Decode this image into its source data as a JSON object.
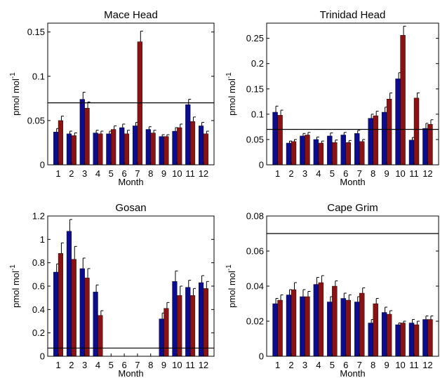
{
  "colors": {
    "series_a": "#0c0d8e",
    "series_b": "#8b1212",
    "axis": "#000000"
  },
  "chart_data": [
    {
      "type": "bar",
      "title": "Mace Head",
      "xlabel": "Month",
      "ylabel": "pmol mol",
      "ylabel_sup": "-1",
      "categories": [
        "1",
        "2",
        "3",
        "4",
        "5",
        "6",
        "7",
        "8",
        "9",
        "10",
        "11",
        "12"
      ],
      "ylim": [
        0,
        0.16
      ],
      "yticks": [
        0,
        0.05,
        0.1,
        0.15
      ],
      "ytick_labels": [
        "0",
        "0.05",
        "0.1",
        "0.15"
      ],
      "reference_line": 0.07,
      "grid": false,
      "series": [
        {
          "values": [
            0.037,
            0.035,
            0.074,
            0.036,
            0.035,
            0.042,
            0.044,
            0.04,
            0.032,
            0.038,
            0.068,
            0.044
          ],
          "errors": [
            0.004,
            0.003,
            0.008,
            0.003,
            0.003,
            0.004,
            0.004,
            0.003,
            0.002,
            0.004,
            0.006,
            0.004
          ]
        },
        {
          "values": [
            0.05,
            0.033,
            0.064,
            0.035,
            0.04,
            0.035,
            0.139,
            0.036,
            0.032,
            0.042,
            0.049,
            0.035
          ],
          "errors": [
            0.005,
            0.003,
            0.007,
            0.003,
            0.004,
            0.004,
            0.012,
            0.003,
            0.002,
            0.004,
            0.005,
            0.003
          ]
        }
      ]
    },
    {
      "type": "bar",
      "title": "Trinidad Head",
      "xlabel": "Month",
      "ylabel": "pmol mol",
      "ylabel_sup": "-1",
      "categories": [
        "1",
        "2",
        "3",
        "4",
        "5",
        "6",
        "7",
        "8",
        "9",
        "10",
        "11",
        "12"
      ],
      "ylim": [
        0,
        0.28
      ],
      "yticks": [
        0,
        0.05,
        0.1,
        0.15,
        0.2,
        0.25
      ],
      "ytick_labels": [
        "0",
        "0.05",
        "0.1",
        "0.15",
        "0.2",
        "0.25"
      ],
      "reference_line": 0.07,
      "grid": false,
      "series": [
        {
          "values": [
            0.104,
            0.043,
            0.057,
            0.05,
            0.057,
            0.059,
            0.062,
            0.092,
            0.104,
            0.17,
            0.049,
            0.072
          ],
          "errors": [
            0.012,
            0.004,
            0.005,
            0.005,
            0.006,
            0.005,
            0.006,
            0.008,
            0.01,
            0.012,
            0.005,
            0.01
          ]
        },
        {
          "values": [
            0.098,
            0.046,
            0.059,
            0.043,
            0.044,
            0.044,
            0.046,
            0.097,
            0.13,
            0.256,
            0.132,
            0.08
          ],
          "errors": [
            0.01,
            0.004,
            0.005,
            0.004,
            0.005,
            0.004,
            0.004,
            0.009,
            0.012,
            0.018,
            0.01,
            0.009
          ]
        }
      ]
    },
    {
      "type": "bar",
      "title": "Gosan",
      "xlabel": "Month",
      "ylabel": "pmol mol",
      "ylabel_sup": "-1",
      "categories": [
        "1",
        "2",
        "3",
        "4",
        "5",
        "6",
        "7",
        "8",
        "9",
        "10",
        "11",
        "12"
      ],
      "ylim": [
        0,
        1.2
      ],
      "yticks": [
        0,
        0.2,
        0.4,
        0.6,
        0.8,
        1,
        1.2
      ],
      "ytick_labels": [
        "0",
        "0.2",
        "0.4",
        "0.6",
        "0.8",
        "1",
        "1.2"
      ],
      "reference_line": 0.07,
      "grid": false,
      "series": [
        {
          "values": [
            0.72,
            1.07,
            0.75,
            0.55,
            0,
            0,
            0,
            0,
            0.32,
            0.64,
            0.59,
            0.63
          ],
          "errors": [
            0.07,
            0.1,
            0.09,
            0.06,
            0,
            0,
            0,
            0,
            0.05,
            0.09,
            0.06,
            0.06
          ]
        },
        {
          "values": [
            0.88,
            0.83,
            0.67,
            0.35,
            0,
            0,
            0,
            0,
            0.41,
            0.52,
            0.52,
            0.58
          ],
          "errors": [
            0.09,
            0.11,
            0.08,
            0.04,
            0,
            0,
            0,
            0,
            0.05,
            0.08,
            0.06,
            0.06
          ]
        }
      ]
    },
    {
      "type": "bar",
      "title": "Cape Grim",
      "xlabel": "Month",
      "ylabel": "pmol mol",
      "ylabel_sup": "-1",
      "categories": [
        "1",
        "2",
        "3",
        "4",
        "5",
        "6",
        "7",
        "8",
        "9",
        "10",
        "11",
        "12"
      ],
      "ylim": [
        0,
        0.08
      ],
      "yticks": [
        0,
        0.02,
        0.04,
        0.06,
        0.08
      ],
      "ytick_labels": [
        "0",
        "0.02",
        "0.04",
        "0.06",
        "0.08"
      ],
      "reference_line": 0.07,
      "grid": false,
      "series": [
        {
          "values": [
            0.03,
            0.035,
            0.034,
            0.041,
            0.031,
            0.033,
            0.031,
            0.019,
            0.025,
            0.018,
            0.019,
            0.021
          ],
          "errors": [
            0.003,
            0.003,
            0.004,
            0.004,
            0.003,
            0.003,
            0.003,
            0.002,
            0.003,
            0.001,
            0.002,
            0.002
          ]
        },
        {
          "values": [
            0.032,
            0.038,
            0.034,
            0.042,
            0.04,
            0.032,
            0.036,
            0.03,
            0.024,
            0.019,
            0.018,
            0.021
          ],
          "errors": [
            0.003,
            0.004,
            0.003,
            0.004,
            0.003,
            0.003,
            0.003,
            0.003,
            0.002,
            0.001,
            0.002,
            0.002
          ]
        }
      ]
    }
  ]
}
